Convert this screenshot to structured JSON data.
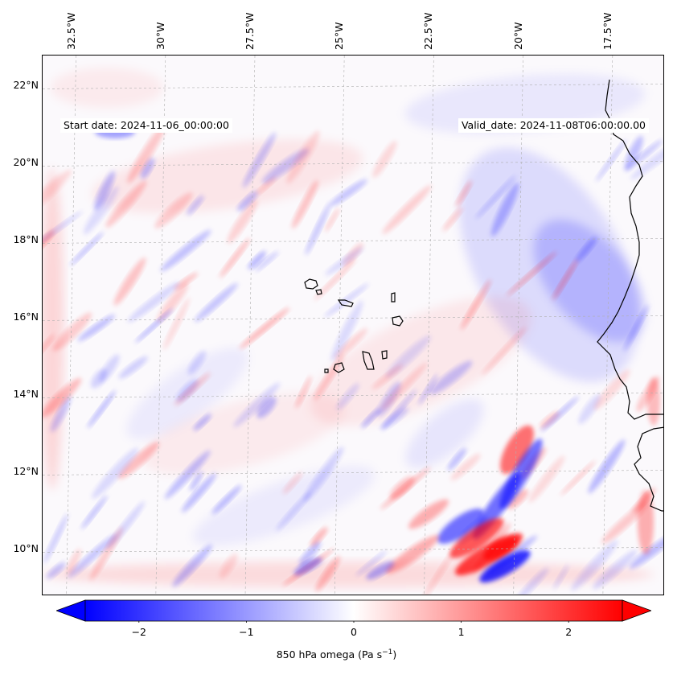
{
  "map": {
    "start_label": "Start date: 2024-11-06_00:00:00",
    "valid_label": "Valid_date: 2024-11-08T06:00:00.00",
    "lon_labels": [
      "32.5°W",
      "30°W",
      "27.5°W",
      "25°W",
      "22.5°W",
      "20°W",
      "17.5°W"
    ],
    "lat_labels": [
      "22°N",
      "20°N",
      "18°N",
      "16°N",
      "14°N",
      "12°N",
      "10°N"
    ],
    "lon_values": [
      -32.5,
      -30,
      -27.5,
      -25,
      -22.5,
      -20,
      -17.5
    ],
    "lat_values": [
      22,
      20,
      18,
      16,
      14,
      12,
      10
    ],
    "lon_range": [
      -33.3,
      -15.9
    ],
    "lat_range": [
      8.8,
      22.8
    ],
    "field": "850 hPa omega",
    "colormap": "bwr",
    "colors": {
      "negative": "#0000ff",
      "zero": "#ffffff",
      "positive": "#ff0000",
      "coast": "#000000",
      "grid": "#b0b0b0"
    }
  },
  "colorbar": {
    "label_main": "850 hPa omega (Pa s",
    "label_exp": "−1",
    "label_close": ")",
    "ticks": [
      "−2",
      "−1",
      "0",
      "1",
      "2"
    ],
    "tick_values": [
      -2,
      -1,
      0,
      1,
      2
    ],
    "range": [
      -2.5,
      2.5
    ],
    "extend": "both"
  }
}
